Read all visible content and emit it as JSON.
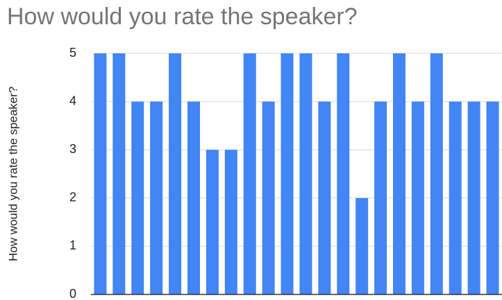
{
  "chart_data": {
    "type": "bar",
    "title": "How would you rate the speaker?",
    "y_label": "How would you rate the speaker?",
    "categories": [
      null,
      null,
      null,
      null,
      null,
      null,
      null,
      null,
      null,
      null,
      null,
      null,
      null,
      null,
      null,
      null,
      null,
      null,
      null,
      null,
      null,
      null
    ],
    "values": [
      5,
      5,
      4,
      4,
      5,
      4,
      3,
      3,
      5,
      4,
      5,
      5,
      4,
      5,
      2,
      4,
      5,
      4,
      5,
      4,
      4,
      4
    ],
    "color": "#4285f4",
    "ylim": [
      0,
      5
    ],
    "yticks": [
      0,
      1,
      2,
      3,
      4,
      5
    ],
    "grid": true
  }
}
